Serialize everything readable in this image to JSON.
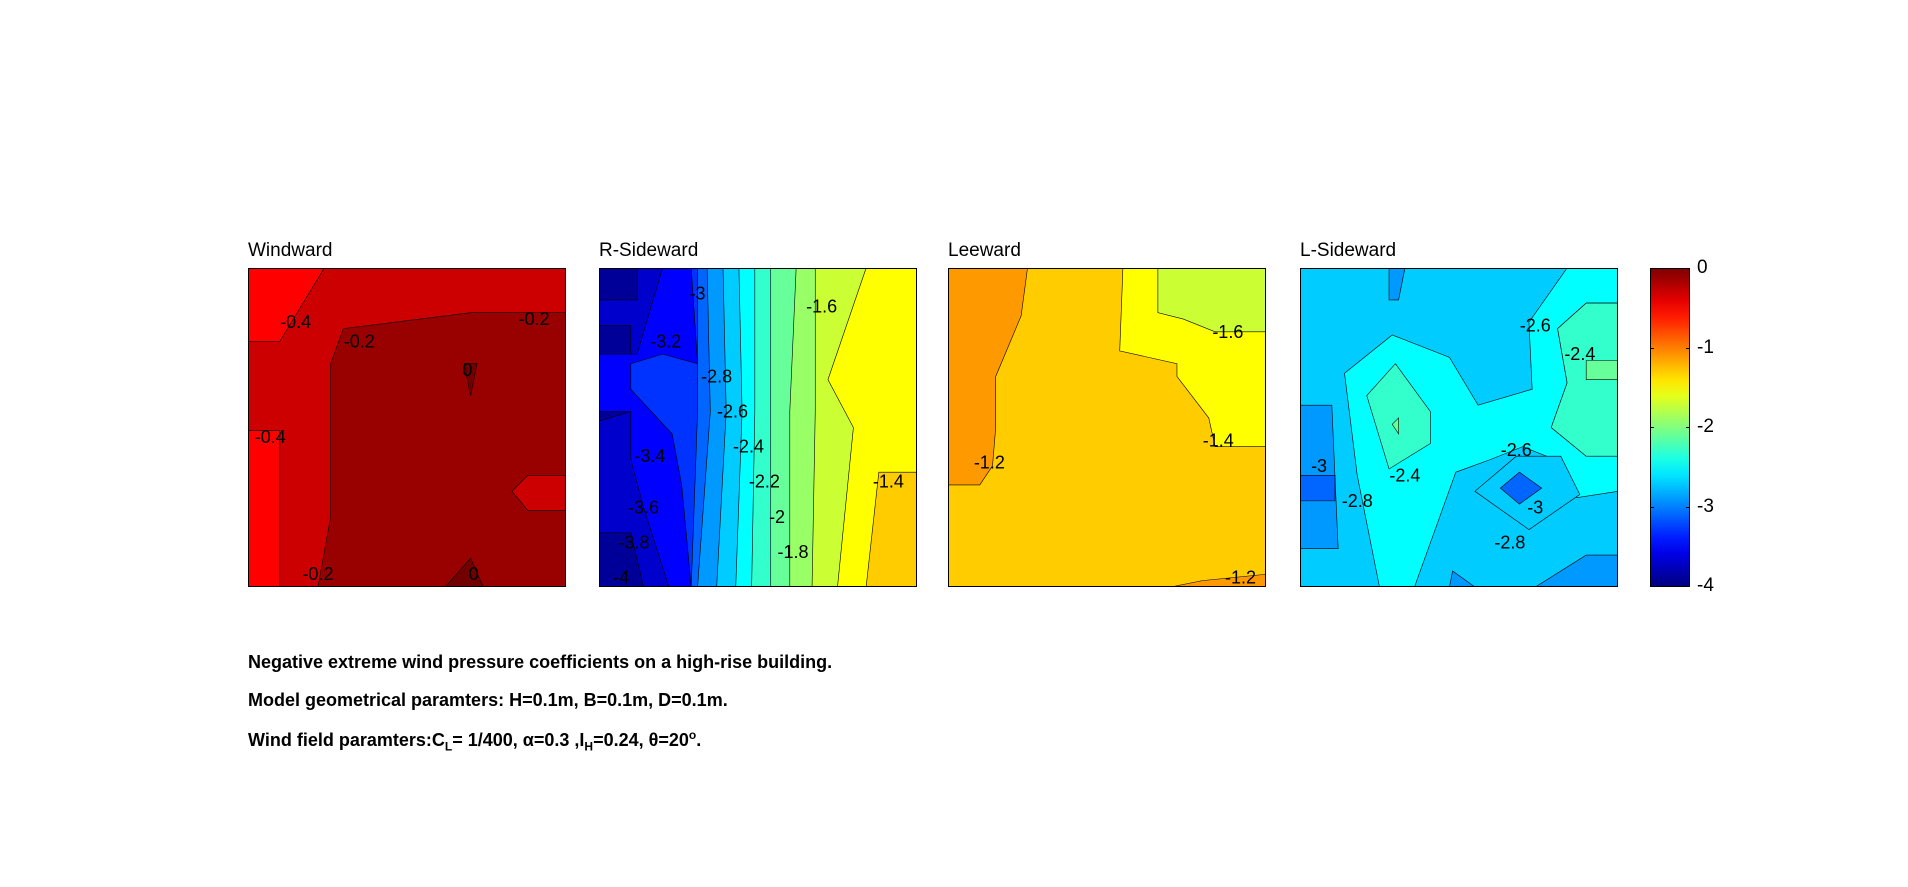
{
  "chart_data": {
    "type": "contour",
    "colormap": "jet",
    "panels": [
      {
        "title": "Windward",
        "contour_labels": [
          "-0.4",
          "-0.2",
          "-0.2",
          "0",
          "-0.4",
          "-0.2",
          "0"
        ]
      },
      {
        "title": "R-Sideward",
        "contour_labels": [
          "-3.2",
          "-3",
          "-2.8",
          "-2.6",
          "-2.4",
          "-2.2",
          "-2",
          "-1.8",
          "-1.6",
          "-3.4",
          "-3.6",
          "-3.8",
          "-4",
          "-1.4"
        ]
      },
      {
        "title": "Leeward",
        "contour_labels": [
          "-1.6",
          "-1.4",
          "-1.2",
          "-1.2"
        ]
      },
      {
        "title": "L-Sideward",
        "contour_labels": [
          "-2.6",
          "-2.4",
          "-2.6",
          "-3",
          "-2.8",
          "-2.4",
          "-3",
          "-2.8"
        ]
      }
    ],
    "colorbar": {
      "range": [
        -4,
        0
      ],
      "ticks": [
        "0",
        "-1",
        "-2",
        "-3",
        "-4"
      ]
    }
  },
  "notes": {
    "line1": "Negative extreme wind pressure coefficients on a high-rise building.",
    "line2": "Model geometrical paramters: H=0.1m, B=0.1m, D=0.1m.",
    "line3": {
      "a": "Wind field paramters:C",
      "sub1": "L",
      "b": "= 1/400, α=0.3 ,I",
      "sub2": "H",
      "c": "=0.24, θ=20",
      "sup": "o",
      "d": "."
    }
  }
}
